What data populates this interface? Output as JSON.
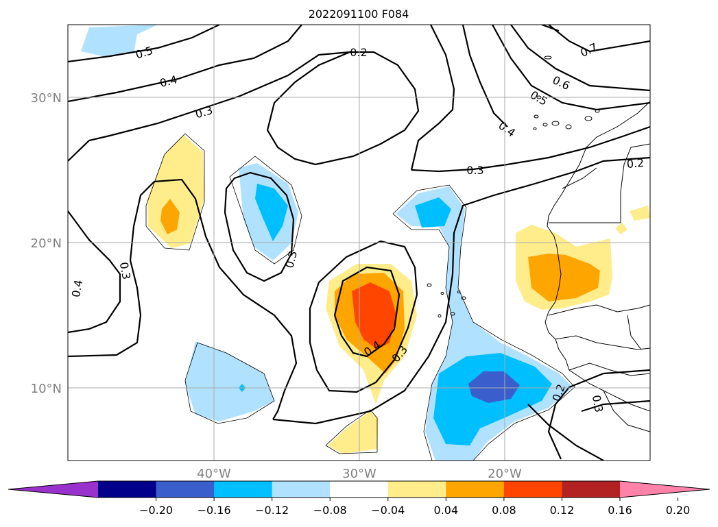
{
  "title": "2022091100 F084",
  "map": {
    "lat_labels": [
      "30°N",
      "20°N",
      "10°N"
    ],
    "lon_labels": [
      "40°W",
      "30°W",
      "20°W"
    ],
    "contour_labels": [
      "0.5",
      "0.4",
      "0.3",
      "0.2",
      "0.7",
      "0.6",
      "0.5",
      "0.4",
      "0.3",
      "0.2",
      "0.4",
      "0.3",
      "0.3",
      "0.4",
      "0.3",
      "0.2",
      "0.3"
    ],
    "gridline_color": "#aaaaaa",
    "tick_label_color": "#808080",
    "contour_color": "#000000",
    "coastline_color": "#000000"
  },
  "colorbar": {
    "tick_labels": [
      "−0.20",
      "−0.16",
      "−0.12",
      "−0.08",
      "−0.04",
      "0.04",
      "0.08",
      "0.12",
      "0.16",
      "0.20"
    ],
    "colors": [
      "#9932cc",
      "#00008b",
      "#3a5fcd",
      "#00bfff",
      "#b0e2ff",
      "#ffffff",
      "#ffec8b",
      "#ffa500",
      "#ff4500",
      "#b22222",
      "#ff82ab"
    ],
    "extend": "both"
  }
}
